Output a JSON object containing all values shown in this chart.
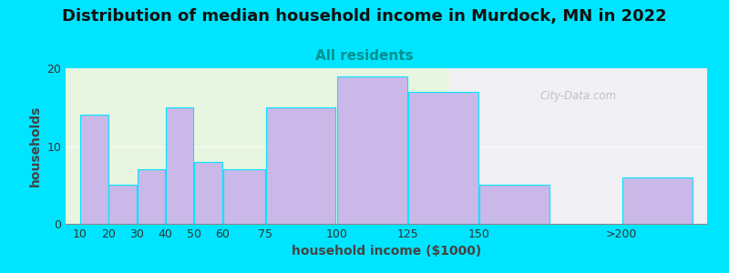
{
  "title": "Distribution of median household income in Murdock, MN in 2022",
  "subtitle": "All residents",
  "xlabel": "household income ($1000)",
  "ylabel": "households",
  "bar_color": "#c9b8e8",
  "bar_edge_color": "#00e5ff",
  "values": [
    14,
    5,
    7,
    15,
    8,
    7,
    15,
    19,
    17,
    5,
    6
  ],
  "left_edges": [
    10,
    20,
    30,
    40,
    50,
    60,
    75,
    100,
    125,
    150,
    200
  ],
  "right_edges": [
    20,
    30,
    40,
    50,
    60,
    75,
    100,
    125,
    150,
    175,
    225
  ],
  "xtick_positions": [
    10,
    20,
    30,
    40,
    50,
    60,
    75,
    100,
    125,
    150,
    200
  ],
  "xtick_labels": [
    "10",
    "20",
    "30",
    "40",
    "50",
    "60",
    "75",
    "100",
    "125",
    "150",
    ">200"
  ],
  "ylim": [
    0,
    20
  ],
  "xlim": [
    5,
    230
  ],
  "yticks": [
    0,
    10,
    20
  ],
  "background_outer": "#00e5ff",
  "background_inner_left": "#e8f5e0",
  "background_inner_right": "#f0f0f5",
  "background_split_x": 140,
  "title_fontsize": 13,
  "subtitle_fontsize": 11,
  "subtitle_color": "#009090",
  "axis_label_fontsize": 10,
  "tick_fontsize": 9,
  "watermark": "City-Data.com"
}
